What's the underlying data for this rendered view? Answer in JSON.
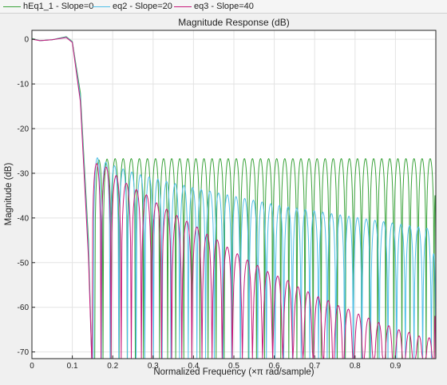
{
  "legend": {
    "items": [
      {
        "label": "hEq1_1 - Slope=0",
        "color": "#3aa33a"
      },
      {
        "label": "eq2 - Slope=20",
        "color": "#4fbfe8"
      },
      {
        "label": "eq3 - Slope=40",
        "color": "#c8197a"
      }
    ]
  },
  "chart_data": {
    "type": "line",
    "title": "Magnitude Response (dB)",
    "xlabel": "Normalized Frequency (×π rad/sample)",
    "ylabel": "Magnitude (dB)",
    "xlim": [
      0,
      1
    ],
    "ylim": [
      -71.5,
      2
    ],
    "xticks": [
      0,
      0.1,
      0.2,
      0.3,
      0.4,
      0.5,
      0.6,
      0.7,
      0.8,
      0.9
    ],
    "xtick_labels": [
      "0",
      "0.1",
      "0.2",
      "0.3",
      "0.4",
      "0.5",
      "0.6",
      "0.7",
      "0.8",
      "0.9"
    ],
    "yticks": [
      0,
      -10,
      -20,
      -30,
      -40,
      -50,
      -60,
      -70
    ],
    "ytick_labels": [
      "0",
      "-10",
      "-20",
      "-30",
      "-40",
      "-50",
      "-60",
      "-70"
    ],
    "grid": true,
    "passband_edge": 0.1,
    "stopband_edge": 0.145,
    "series": [
      {
        "name": "hEq1_1 - Slope=0",
        "color": "#3aa33a",
        "passband": [
          [
            0,
            0.2
          ],
          [
            0.02,
            -0.3
          ],
          [
            0.05,
            -0.1
          ],
          [
            0.085,
            0.6
          ],
          [
            0.1,
            -0.5
          ],
          [
            0.12,
            -12
          ],
          [
            0.14,
            -45
          ],
          [
            0.148,
            -71.5
          ]
        ],
        "lobes": [
          [
            0.1555,
            0.176,
            -27.0
          ],
          [
            0.176,
            0.196,
            -26.8
          ],
          [
            0.196,
            0.216,
            -26.7
          ],
          [
            0.216,
            0.236,
            -26.7
          ],
          [
            0.236,
            0.256,
            -26.7
          ],
          [
            0.256,
            0.276,
            -26.7
          ],
          [
            0.276,
            0.296,
            -26.7
          ],
          [
            0.296,
            0.316,
            -26.7
          ],
          [
            0.316,
            0.336,
            -26.7
          ],
          [
            0.336,
            0.356,
            -26.7
          ],
          [
            0.356,
            0.376,
            -26.7
          ],
          [
            0.376,
            0.396,
            -26.7
          ],
          [
            0.396,
            0.416,
            -26.7
          ],
          [
            0.416,
            0.436,
            -26.7
          ],
          [
            0.436,
            0.456,
            -26.7
          ],
          [
            0.456,
            0.476,
            -26.7
          ],
          [
            0.476,
            0.496,
            -26.7
          ],
          [
            0.496,
            0.516,
            -26.7
          ],
          [
            0.516,
            0.536,
            -26.7
          ],
          [
            0.536,
            0.556,
            -26.7
          ],
          [
            0.556,
            0.576,
            -26.7
          ],
          [
            0.576,
            0.596,
            -26.7
          ],
          [
            0.596,
            0.616,
            -26.7
          ],
          [
            0.616,
            0.636,
            -26.7
          ],
          [
            0.636,
            0.656,
            -26.7
          ],
          [
            0.656,
            0.676,
            -26.7
          ],
          [
            0.676,
            0.696,
            -26.7
          ],
          [
            0.696,
            0.716,
            -26.7
          ],
          [
            0.716,
            0.736,
            -26.7
          ],
          [
            0.736,
            0.756,
            -26.7
          ],
          [
            0.756,
            0.776,
            -26.7
          ],
          [
            0.776,
            0.796,
            -26.7
          ],
          [
            0.796,
            0.816,
            -26.7
          ],
          [
            0.816,
            0.836,
            -26.7
          ],
          [
            0.836,
            0.856,
            -26.7
          ],
          [
            0.856,
            0.876,
            -26.7
          ],
          [
            0.876,
            0.896,
            -26.7
          ],
          [
            0.896,
            0.916,
            -26.7
          ],
          [
            0.916,
            0.936,
            -26.7
          ],
          [
            0.936,
            0.956,
            -26.7
          ],
          [
            0.956,
            0.976,
            -26.7
          ],
          [
            0.976,
            0.996,
            -26.7
          ],
          [
            0.996,
            1.0,
            -35
          ]
        ]
      },
      {
        "name": "eq2 - Slope=20",
        "color": "#4fbfe8",
        "passband": [
          [
            0,
            0.1
          ],
          [
            0.02,
            -0.3
          ],
          [
            0.05,
            -0.1
          ],
          [
            0.085,
            0.5
          ],
          [
            0.1,
            -0.6
          ],
          [
            0.12,
            -13
          ],
          [
            0.14,
            -47
          ],
          [
            0.148,
            -71.5
          ]
        ],
        "lobes": [
          [
            0.152,
            0.172,
            -26.5
          ],
          [
            0.172,
            0.1935,
            -27.5
          ],
          [
            0.1935,
            0.215,
            -28.3
          ],
          [
            0.215,
            0.2365,
            -29.0
          ],
          [
            0.2365,
            0.258,
            -29.7
          ],
          [
            0.258,
            0.2795,
            -30.3
          ],
          [
            0.2795,
            0.301,
            -30.8
          ],
          [
            0.301,
            0.3225,
            -31.3
          ],
          [
            0.3225,
            0.344,
            -31.8
          ],
          [
            0.344,
            0.3655,
            -32.3
          ],
          [
            0.3655,
            0.387,
            -32.7
          ],
          [
            0.387,
            0.4085,
            -33.2
          ],
          [
            0.4085,
            0.43,
            -33.6
          ],
          [
            0.43,
            0.4515,
            -34.0
          ],
          [
            0.4515,
            0.473,
            -34.4
          ],
          [
            0.473,
            0.4945,
            -34.8
          ],
          [
            0.4945,
            0.516,
            -35.2
          ],
          [
            0.516,
            0.5375,
            -35.6
          ],
          [
            0.5375,
            0.559,
            -36.0
          ],
          [
            0.559,
            0.5805,
            -36.4
          ],
          [
            0.5805,
            0.602,
            -36.8
          ],
          [
            0.602,
            0.6235,
            -37.2
          ],
          [
            0.6235,
            0.645,
            -37.5
          ],
          [
            0.645,
            0.6665,
            -37.8
          ],
          [
            0.6665,
            0.688,
            -38.1
          ],
          [
            0.688,
            0.7095,
            -38.4
          ],
          [
            0.7095,
            0.731,
            -38.7
          ],
          [
            0.731,
            0.7525,
            -39.0
          ],
          [
            0.7525,
            0.774,
            -39.3
          ],
          [
            0.774,
            0.7955,
            -39.6
          ],
          [
            0.7955,
            0.817,
            -39.9
          ],
          [
            0.817,
            0.8385,
            -40.2
          ],
          [
            0.8385,
            0.86,
            -40.5
          ],
          [
            0.86,
            0.8815,
            -40.8
          ],
          [
            0.8815,
            0.903,
            -41.1
          ],
          [
            0.903,
            0.9245,
            -41.4
          ],
          [
            0.9245,
            0.946,
            -41.7
          ],
          [
            0.946,
            0.9675,
            -42.0
          ],
          [
            0.9675,
            0.989,
            -42.3
          ],
          [
            0.989,
            1.0,
            -48
          ]
        ]
      },
      {
        "name": "eq3 - Slope=40",
        "color": "#c8197a",
        "passband": [
          [
            0,
            0.0
          ],
          [
            0.02,
            -0.3
          ],
          [
            0.05,
            -0.1
          ],
          [
            0.085,
            0.4
          ],
          [
            0.1,
            -0.7
          ],
          [
            0.12,
            -14
          ],
          [
            0.14,
            -49
          ],
          [
            0.148,
            -71.5
          ]
        ],
        "lobes": [
          [
            0.149,
            0.171,
            -27.8
          ],
          [
            0.171,
            0.196,
            -28.6
          ],
          [
            0.196,
            0.221,
            -30.5
          ],
          [
            0.221,
            0.246,
            -32.2
          ],
          [
            0.246,
            0.271,
            -33.6
          ],
          [
            0.271,
            0.296,
            -34.8
          ],
          [
            0.296,
            0.321,
            -36.6
          ],
          [
            0.321,
            0.346,
            -38.0
          ],
          [
            0.346,
            0.371,
            -39.4
          ],
          [
            0.371,
            0.396,
            -40.7
          ],
          [
            0.396,
            0.421,
            -42.0
          ],
          [
            0.421,
            0.446,
            -43.6
          ],
          [
            0.446,
            0.471,
            -44.9
          ],
          [
            0.471,
            0.496,
            -46.5
          ],
          [
            0.496,
            0.521,
            -48.0
          ],
          [
            0.521,
            0.546,
            -49.4
          ],
          [
            0.546,
            0.571,
            -50.6
          ],
          [
            0.571,
            0.596,
            -52.0
          ],
          [
            0.596,
            0.621,
            -53.0
          ],
          [
            0.621,
            0.646,
            -54.0
          ],
          [
            0.646,
            0.671,
            -55.4
          ],
          [
            0.671,
            0.696,
            -56.5
          ],
          [
            0.696,
            0.721,
            -57.6
          ],
          [
            0.721,
            0.746,
            -58.5
          ],
          [
            0.746,
            0.771,
            -59.6
          ],
          [
            0.771,
            0.796,
            -60.4
          ],
          [
            0.796,
            0.821,
            -61.5
          ],
          [
            0.821,
            0.846,
            -62.4
          ],
          [
            0.846,
            0.871,
            -63.4
          ],
          [
            0.871,
            0.896,
            -64.1
          ],
          [
            0.896,
            0.921,
            -65.0
          ],
          [
            0.921,
            0.946,
            -65.6
          ],
          [
            0.946,
            0.971,
            -66.4
          ],
          [
            0.971,
            0.996,
            -66.8
          ],
          [
            0.996,
            1.0,
            -62
          ]
        ]
      }
    ]
  }
}
